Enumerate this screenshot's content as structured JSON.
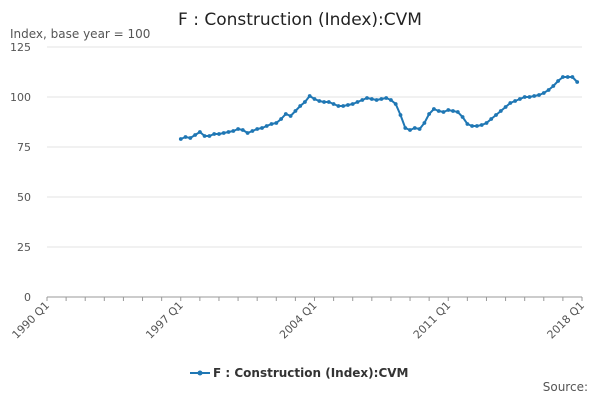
{
  "chart_data": {
    "type": "line",
    "title": "F : Construction (Index):CVM",
    "ylabel": "Index, base year = 100",
    "xlabel": "",
    "ylim": [
      0,
      125
    ],
    "yticks": [
      0,
      25,
      50,
      75,
      100,
      125
    ],
    "xlim": [
      1990.0,
      2018.0
    ],
    "xtick_labels": [
      "1990 Q1",
      "1997 Q1",
      "2004 Q1",
      "2011 Q1",
      "2018 Q1"
    ],
    "grid": "horizontal",
    "legend_position": "bottom",
    "source_label": "Source:",
    "series": [
      {
        "name": "F : Construction (Index):CVM",
        "color": "#1f77b4",
        "start_quarter": "1997 Q1",
        "values": [
          79,
          80,
          79.5,
          81,
          82.5,
          80.5,
          80.5,
          81.5,
          81.5,
          82,
          82.5,
          83,
          84,
          83.5,
          82,
          83,
          84,
          84.5,
          85.5,
          86.5,
          87,
          89,
          91.5,
          90.5,
          93,
          95.5,
          97.5,
          100.5,
          99,
          98,
          97.5,
          97.5,
          96.5,
          95.5,
          95.5,
          96,
          96.5,
          97.5,
          98.5,
          99.5,
          99,
          98.5,
          99,
          99.5,
          98.5,
          96.5,
          91,
          84.5,
          83.5,
          84.5,
          84,
          87,
          91.5,
          94,
          93,
          92.5,
          93.5,
          93,
          92.5,
          90,
          86.5,
          85.5,
          85.5,
          86,
          87,
          89,
          91,
          93,
          95,
          97,
          98,
          99,
          100,
          100,
          100.5,
          101,
          102,
          103.5,
          105.5,
          108,
          110,
          110,
          110,
          107.5
        ]
      }
    ]
  }
}
